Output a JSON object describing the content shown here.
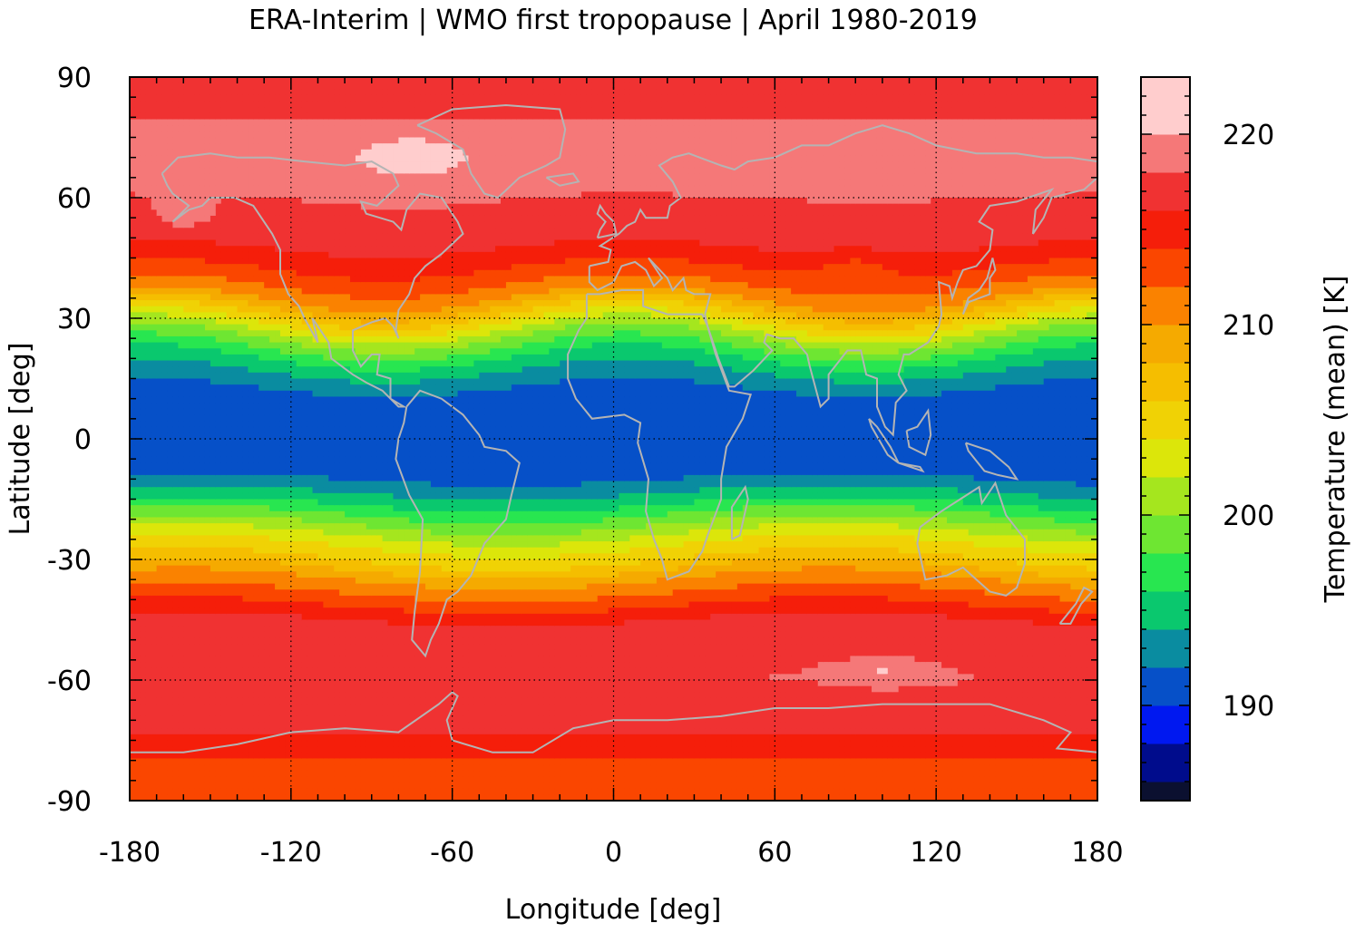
{
  "chart_data": {
    "type": "heatmap",
    "title": "ERA-Interim | WMO first tropopause | April 1980-2019",
    "xlabel": "Longitude [deg]",
    "ylabel": "Latitude [deg]",
    "colorbar_label": "Temperature (mean) [K]",
    "xlim": [
      -180,
      180
    ],
    "ylim": [
      -90,
      90
    ],
    "x_ticks": [
      -180,
      -120,
      -60,
      0,
      60,
      120,
      180
    ],
    "y_ticks": [
      -90,
      -60,
      -30,
      0,
      30,
      60,
      90
    ],
    "colorbar_range": [
      185,
      223
    ],
    "colorbar_ticks": [
      190,
      200,
      210,
      220
    ],
    "colorbar_levels": [
      {
        "value": 186,
        "color": "#0b1030"
      },
      {
        "value": 188,
        "color": "#000c8c"
      },
      {
        "value": 190,
        "color": "#0018f0"
      },
      {
        "value": 192,
        "color": "#0650c8"
      },
      {
        "value": 194,
        "color": "#0a8ca0"
      },
      {
        "value": 196,
        "color": "#0ac86e"
      },
      {
        "value": 198,
        "color": "#28e650"
      },
      {
        "value": 200,
        "color": "#6ee632"
      },
      {
        "value": 202,
        "color": "#a5e61e"
      },
      {
        "value": 204,
        "color": "#dce60a"
      },
      {
        "value": 206,
        "color": "#f0d205"
      },
      {
        "value": 208,
        "color": "#f5be00"
      },
      {
        "value": 210,
        "color": "#f5aa00"
      },
      {
        "value": 212,
        "color": "#fa8200"
      },
      {
        "value": 214,
        "color": "#fa4600"
      },
      {
        "value": 216,
        "color": "#f51e0a"
      },
      {
        "value": 218,
        "color": "#f03232"
      },
      {
        "value": 220,
        "color": "#f57878"
      },
      {
        "value": 222,
        "color": "#ffcdcd"
      }
    ],
    "zonal_mean_temperature": {
      "lat": [
        90,
        80,
        70,
        60,
        50,
        45,
        40,
        35,
        30,
        25,
        20,
        15,
        10,
        5,
        0,
        -5,
        -10,
        -15,
        -20,
        -25,
        -30,
        -35,
        -40,
        -45,
        -50,
        -60,
        -70,
        -80,
        -90
      ],
      "temp": [
        217,
        218,
        219,
        218,
        217,
        215,
        213,
        210,
        205,
        200,
        196,
        193,
        191,
        190.5,
        190.5,
        191,
        192,
        195,
        199,
        203,
        206,
        210,
        213,
        216,
        217,
        218,
        217,
        214,
        213
      ]
    },
    "colors": {
      "coastline": "#b4b4b4",
      "gridline": "#000000"
    }
  }
}
